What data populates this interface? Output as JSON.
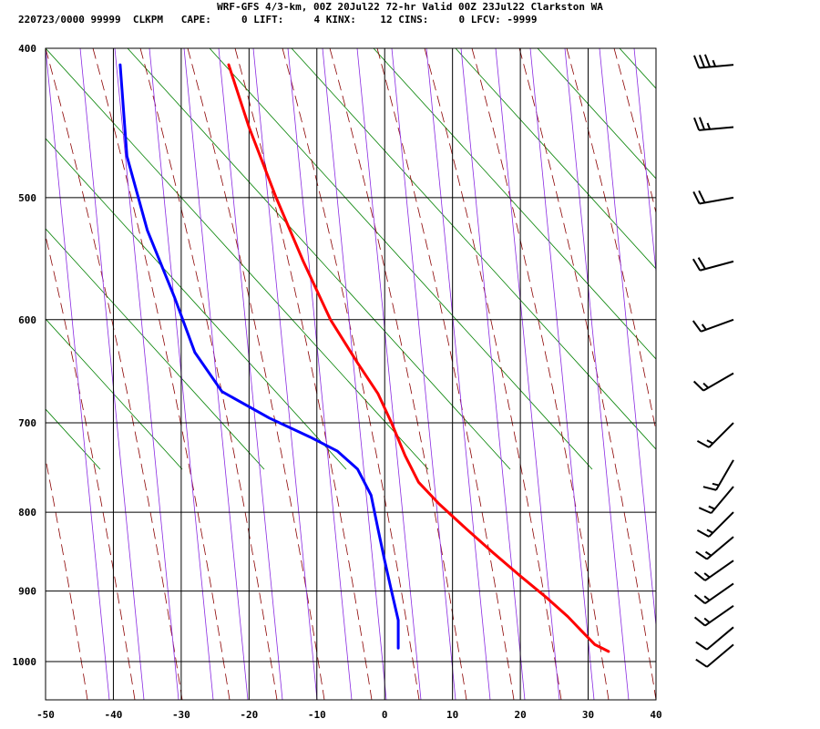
{
  "header": {
    "title": "WRF-GFS 4/3-km, 00Z 20Jul22 72-hr Valid 00Z 23Jul22 Clarkston WA",
    "info": "220723/0000 99999  CLKPM   CAPE:     0 LIFT:     4 KINX:    12 CINS:     0 LFCV: -9999"
  },
  "chart_data": {
    "type": "line",
    "title": "",
    "xlabel": "",
    "ylabel": "",
    "xlim": [
      -50,
      40
    ],
    "ylim": [
      1050,
      400
    ],
    "y_scale": "log",
    "x_ticks": [
      -50,
      -40,
      -30,
      -20,
      -10,
      0,
      10,
      20,
      30,
      40
    ],
    "x_tick_labels": [
      "-50",
      "-40",
      "-30",
      "-20",
      "-10",
      "0",
      "10",
      "20",
      "30",
      "40"
    ],
    "y_ticks": [
      400,
      500,
      600,
      700,
      800,
      900,
      1000
    ],
    "y_tick_labels": [
      "400",
      "500",
      "600",
      "700",
      "800",
      "900",
      "1000"
    ],
    "grid": true,
    "background_lines": {
      "dry_adiabats": {
        "color": "#008000",
        "style": "solid"
      },
      "moist_adiabats": {
        "color": "#8b0000",
        "style": "dashed"
      },
      "mixing_ratio": {
        "color": "#8a2be2",
        "style": "solid"
      }
    },
    "series": [
      {
        "role": "temperature",
        "color": "#ff0000",
        "points": [
          {
            "x": -23,
            "p": 410
          },
          {
            "x": -20,
            "p": 450
          },
          {
            "x": -16,
            "p": 500
          },
          {
            "x": -12,
            "p": 550
          },
          {
            "x": -8,
            "p": 600
          },
          {
            "x": -4,
            "p": 640
          },
          {
            "x": -1,
            "p": 670
          },
          {
            "x": 1,
            "p": 700
          },
          {
            "x": 3,
            "p": 735
          },
          {
            "x": 5,
            "p": 765
          },
          {
            "x": 8,
            "p": 790
          },
          {
            "x": 12,
            "p": 820
          },
          {
            "x": 16,
            "p": 850
          },
          {
            "x": 20,
            "p": 880
          },
          {
            "x": 24,
            "p": 910
          },
          {
            "x": 27,
            "p": 935
          },
          {
            "x": 29,
            "p": 955
          },
          {
            "x": 31,
            "p": 975
          },
          {
            "x": 33,
            "p": 985
          }
        ]
      },
      {
        "role": "dewpoint",
        "color": "#0000ff",
        "points": [
          {
            "x": -39,
            "p": 410
          },
          {
            "x": -38,
            "p": 470
          },
          {
            "x": -35,
            "p": 525
          },
          {
            "x": -31,
            "p": 580
          },
          {
            "x": -28,
            "p": 630
          },
          {
            "x": -24,
            "p": 668
          },
          {
            "x": -17,
            "p": 695
          },
          {
            "x": -11,
            "p": 715
          },
          {
            "x": -7,
            "p": 730
          },
          {
            "x": -4,
            "p": 750
          },
          {
            "x": -2,
            "p": 780
          },
          {
            "x": -1,
            "p": 820
          },
          {
            "x": 0,
            "p": 860
          },
          {
            "x": 1,
            "p": 900
          },
          {
            "x": 2,
            "p": 940
          },
          {
            "x": 2,
            "p": 980
          }
        ]
      }
    ],
    "wind_barbs": [
      {
        "p": 410,
        "dir": 265,
        "speed": 35
      },
      {
        "p": 450,
        "dir": 265,
        "speed": 25
      },
      {
        "p": 500,
        "dir": 260,
        "speed": 20
      },
      {
        "p": 550,
        "dir": 255,
        "speed": 20
      },
      {
        "p": 600,
        "dir": 250,
        "speed": 15
      },
      {
        "p": 650,
        "dir": 240,
        "speed": 15
      },
      {
        "p": 700,
        "dir": 225,
        "speed": 15
      },
      {
        "p": 740,
        "dir": 210,
        "speed": 15
      },
      {
        "p": 770,
        "dir": 220,
        "speed": 15
      },
      {
        "p": 800,
        "dir": 225,
        "speed": 15
      },
      {
        "p": 830,
        "dir": 230,
        "speed": 15
      },
      {
        "p": 860,
        "dir": 235,
        "speed": 15
      },
      {
        "p": 890,
        "dir": 235,
        "speed": 15
      },
      {
        "p": 920,
        "dir": 235,
        "speed": 15
      },
      {
        "p": 950,
        "dir": 230,
        "speed": 10
      },
      {
        "p": 975,
        "dir": 230,
        "speed": 10
      }
    ]
  }
}
